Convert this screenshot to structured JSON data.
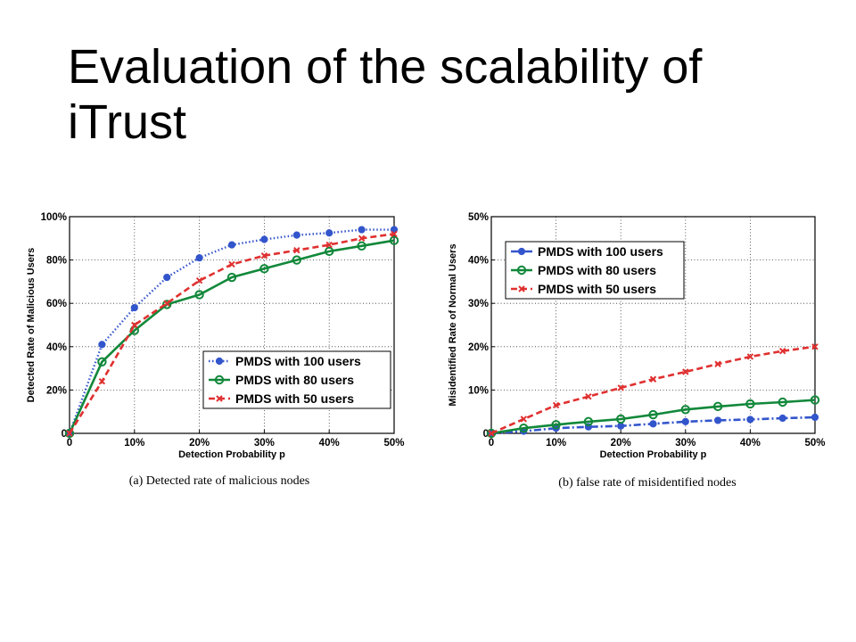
{
  "slide": {
    "title": "Evaluation of the scalability of iTrust"
  },
  "chart_data": [
    {
      "type": "line",
      "caption": "(a) Detected rate of malicious nodes",
      "xlabel": "Detection Probability p",
      "ylabel": "Detected Rate of Malicious Users",
      "xlim": [
        0,
        50
      ],
      "ylim": [
        0,
        100
      ],
      "xticks": [
        0,
        10,
        20,
        30,
        40,
        50
      ],
      "xtick_labels": [
        "0",
        "10%",
        "20%",
        "30%",
        "40%",
        "50%"
      ],
      "yticks": [
        0,
        20,
        40,
        60,
        80,
        100
      ],
      "ytick_labels": [
        "0",
        "20%",
        "40%",
        "60%",
        "80%",
        "100%"
      ],
      "grid": true,
      "legend": "bottom-right",
      "x": [
        0,
        5,
        10,
        15,
        20,
        25,
        30,
        35,
        40,
        45,
        50
      ],
      "series": [
        {
          "name": "PMDS with 100 users",
          "color": "#3355cc",
          "style": "dotted",
          "marker": "dot",
          "values": [
            0,
            41,
            58,
            72,
            81,
            87,
            89.5,
            91.5,
            92.5,
            94,
            94
          ]
        },
        {
          "name": "PMDS with 80 users",
          "color": "#11883a",
          "style": "solid",
          "marker": "circle",
          "values": [
            0,
            33,
            47.5,
            59.5,
            64,
            72,
            76,
            80,
            84,
            86.5,
            89
          ]
        },
        {
          "name": "PMDS with 50 users",
          "color": "#e03030",
          "style": "dashed",
          "marker": "x",
          "values": [
            0,
            24,
            50,
            60,
            70.5,
            78,
            82,
            84.5,
            87,
            90,
            92
          ]
        }
      ]
    },
    {
      "type": "line",
      "caption": "(b) false rate of misidentified nodes",
      "xlabel": "Detection Probability p",
      "ylabel": "Misidentified Rate of Normal Users",
      "xlim": [
        0,
        50
      ],
      "ylim": [
        0,
        50
      ],
      "xticks": [
        0,
        10,
        20,
        30,
        40,
        50
      ],
      "xtick_labels": [
        "0",
        "10%",
        "20%",
        "30%",
        "40%",
        "50%"
      ],
      "yticks": [
        0,
        10,
        20,
        30,
        40,
        50
      ],
      "ytick_labels": [
        "0",
        "10%",
        "20%",
        "30%",
        "40%",
        "50%"
      ],
      "grid": true,
      "legend": "top-left",
      "x": [
        0,
        5,
        10,
        15,
        20,
        25,
        30,
        35,
        40,
        45,
        50
      ],
      "series": [
        {
          "name": "PMDS with 100 users",
          "color": "#3355cc",
          "style": "dashdot",
          "marker": "dot",
          "values": [
            0,
            0.5,
            1.2,
            1.5,
            1.7,
            2.2,
            2.7,
            3.0,
            3.2,
            3.5,
            3.7
          ]
        },
        {
          "name": "PMDS with 80 users",
          "color": "#11883a",
          "style": "solid",
          "marker": "circle",
          "values": [
            0,
            1.2,
            2.0,
            2.7,
            3.3,
            4.3,
            5.5,
            6.2,
            6.8,
            7.2,
            7.7
          ]
        },
        {
          "name": "PMDS with 50 users",
          "color": "#e03030",
          "style": "dashed",
          "marker": "x",
          "values": [
            0,
            3.3,
            6.5,
            8.5,
            10.5,
            12.5,
            14.2,
            16,
            17.7,
            19,
            20
          ]
        }
      ]
    }
  ]
}
